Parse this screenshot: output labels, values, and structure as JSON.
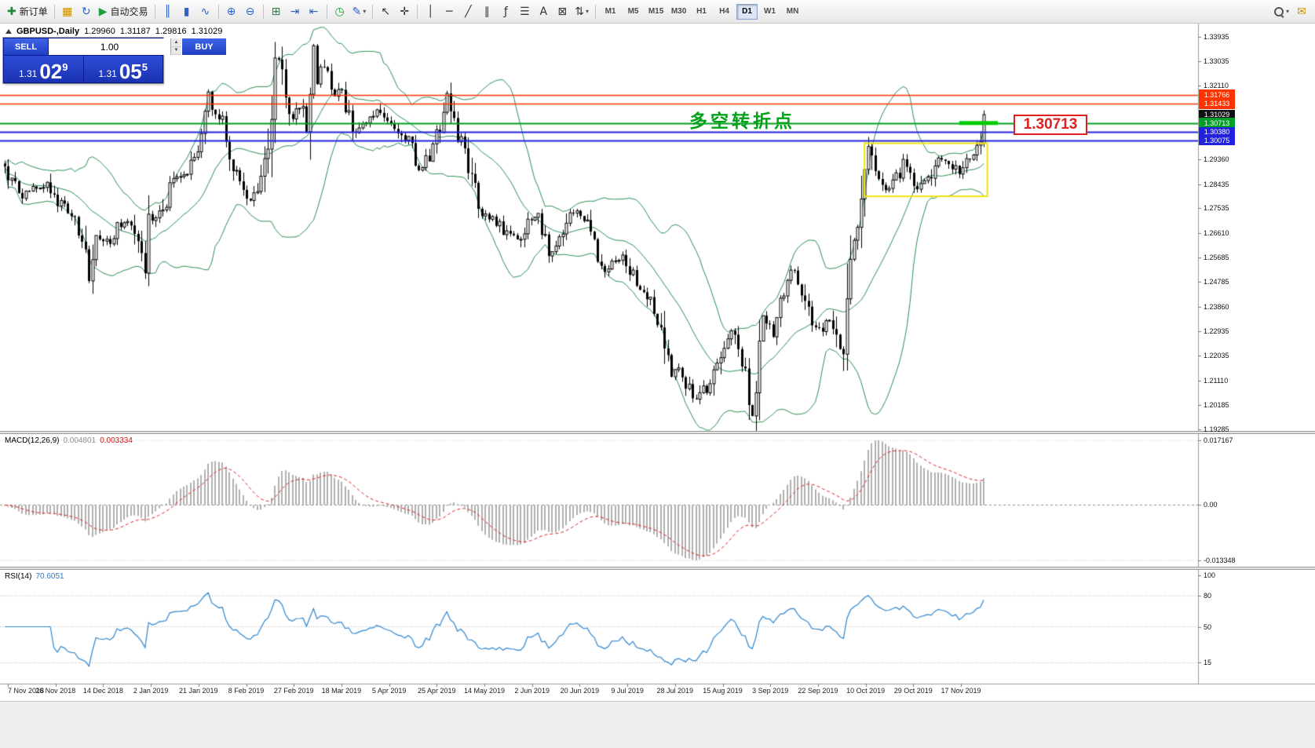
{
  "toolbar": {
    "items": [
      {
        "type": "labeled",
        "name": "new-order-button",
        "icon": "new-order-icon",
        "glyph": "✚",
        "color": "#1f8a3b",
        "label": "新订单"
      },
      {
        "type": "sep"
      },
      {
        "type": "icon",
        "name": "profiles-icon",
        "glyph": "▦",
        "color": "#c98f00"
      },
      {
        "type": "icon",
        "name": "refresh-icon",
        "glyph": "↻",
        "color": "#2f62c4"
      },
      {
        "type": "labeled",
        "name": "autotrade-button",
        "icon": "autotrade-play-icon",
        "glyph": "▶",
        "color": "#1fa03c",
        "label": "自动交易"
      },
      {
        "type": "sep"
      },
      {
        "type": "icon",
        "name": "bar-chart-icon",
        "glyph": "║",
        "color": "#2f62c4"
      },
      {
        "type": "icon",
        "name": "candlestick-chart-icon",
        "glyph": "▮",
        "color": "#2f62c4"
      },
      {
        "type": "icon",
        "name": "line-chart-icon",
        "glyph": "∿",
        "color": "#2f62c4"
      },
      {
        "type": "sep"
      },
      {
        "type": "icon",
        "name": "zoom-in-icon",
        "glyph": "⊕",
        "color": "#2f62c4"
      },
      {
        "type": "icon",
        "name": "zoom-out-icon",
        "glyph": "⊖",
        "color": "#2f62c4"
      },
      {
        "type": "sep"
      },
      {
        "type": "icon",
        "name": "tile-windows-icon",
        "glyph": "⊞",
        "color": "#1f8a3b"
      },
      {
        "type": "icon",
        "name": "auto-scroll-icon",
        "glyph": "⇥",
        "color": "#2f62c4"
      },
      {
        "type": "icon",
        "name": "chart-shift-icon",
        "glyph": "⇤",
        "color": "#2f62c4"
      },
      {
        "type": "sep"
      },
      {
        "type": "icon",
        "name": "clock-icon",
        "glyph": "◷",
        "color": "#1fa03c"
      },
      {
        "type": "icon",
        "name": "templates-icon",
        "glyph": "✎",
        "color": "#2f62c4",
        "caret": true
      },
      {
        "type": "sep"
      },
      {
        "type": "icon",
        "name": "cursor-icon",
        "glyph": "↖",
        "color": "#333333"
      },
      {
        "type": "icon",
        "name": "crosshair-icon",
        "glyph": "✛",
        "color": "#333333"
      },
      {
        "type": "sep"
      },
      {
        "type": "icon",
        "name": "vertical-line-icon",
        "glyph": "│",
        "color": "#333333"
      },
      {
        "type": "icon",
        "name": "horizontal-line-icon",
        "glyph": "─",
        "color": "#333333"
      },
      {
        "type": "icon",
        "name": "trendline-icon",
        "glyph": "╱",
        "color": "#333333"
      },
      {
        "type": "icon",
        "name": "equidistant-channel-icon",
        "glyph": "∥",
        "color": "#333333"
      },
      {
        "type": "icon",
        "name": "fibonacci-icon",
        "glyph": "ƒ",
        "color": "#333333"
      },
      {
        "type": "icon",
        "name": "shapes-icon",
        "glyph": "☰",
        "color": "#333333"
      },
      {
        "type": "icon",
        "name": "text-icon",
        "glyph": "A",
        "color": "#333333"
      },
      {
        "type": "icon",
        "name": "text-label-icon",
        "glyph": "⊠",
        "color": "#333333"
      },
      {
        "type": "icon",
        "name": "arrows-icon",
        "glyph": "⇅",
        "color": "#333333",
        "caret": true
      }
    ],
    "timeframes": {
      "options": [
        "M1",
        "M5",
        "M15",
        "M30",
        "H1",
        "H4",
        "D1",
        "W1",
        "MN"
      ],
      "active": "D1"
    }
  },
  "chart_header": {
    "symbol": "GBPUSD-,Daily",
    "open": "1.29960",
    "high": "1.31187",
    "low": "1.29816",
    "close": "1.31029"
  },
  "trade_panel": {
    "sell_label": "SELL",
    "buy_label": "BUY",
    "volume": "1.00",
    "sell_price": {
      "prefix": "1.31",
      "big": "02",
      "sup": "9"
    },
    "buy_price": {
      "prefix": "1.31",
      "big": "05",
      "sup": "5"
    }
  },
  "annotations": {
    "turning_point": "多空转折点",
    "price_tag": "1.30713"
  },
  "price_scale": {
    "ticks": [
      "1.33935",
      "1.33035",
      "1.32110",
      "1.29360",
      "1.28435",
      "1.27535",
      "1.26610",
      "1.25685",
      "1.24785",
      "1.23860",
      "1.22935",
      "1.22035",
      "1.21110",
      "1.20185",
      "1.19285"
    ],
    "badges": [
      {
        "text": "1.31766",
        "bg": "#ff3300"
      },
      {
        "text": "1.31433",
        "bg": "#ff3300"
      },
      {
        "text": "1.31029",
        "bg": "#111111"
      },
      {
        "text": "1.30713",
        "bg": "#00a028"
      },
      {
        "text": "1.30380",
        "bg": "#2222dd"
      },
      {
        "text": "1.30075",
        "bg": "#2222dd"
      }
    ]
  },
  "macd_panel": {
    "label": "MACD(12,26,9)",
    "value_main": "0.004801",
    "value_signal": "0.003334",
    "ticks": {
      "top": "0.017167",
      "zero": "0.00",
      "bottom": "-0.013348"
    }
  },
  "rsi_panel": {
    "label": "RSI(14)",
    "value": "70.6051",
    "ticks": [
      "100",
      "80",
      "50",
      "15"
    ],
    "levels": [
      80,
      50,
      15
    ]
  },
  "time_axis": {
    "dates": [
      "7 Nov 2018",
      "26 Nov 2018",
      "14 Dec 2018",
      "2 Jan 2019",
      "21 Jan 2019",
      "8 Feb 2019",
      "27 Feb 2019",
      "18 Mar 2019",
      "5 Apr 2019",
      "25 Apr 2019",
      "14 May 2019",
      "2 Jun 2019",
      "20 Jun 2019",
      "9 Jul 2019",
      "28 Jul 2019",
      "15 Aug 2019",
      "3 Sep 2019",
      "22 Sep 2019",
      "10 Oct 2019",
      "29 Oct 2019",
      "17 Nov 2019"
    ]
  },
  "chart_data": {
    "type": "candlestick",
    "symbol": "GBPUSD",
    "timeframe": "Daily",
    "grid": false,
    "price_axis": {
      "min": 1.1922,
      "max": 1.3443
    },
    "candles": {
      "count": 280,
      "last": {
        "o": 1.2996,
        "h": 1.31187,
        "l": 1.29816,
        "c": 1.31029
      },
      "price_path": [
        [
          0,
          1.292
        ],
        [
          4,
          1.2795
        ],
        [
          8,
          1.2825
        ],
        [
          12,
          1.284
        ],
        [
          16,
          1.276
        ],
        [
          20,
          1.272
        ],
        [
          23,
          1.256
        ],
        [
          24,
          1.249
        ],
        [
          26,
          1.262
        ],
        [
          30,
          1.264
        ],
        [
          33,
          1.27
        ],
        [
          36,
          1.269
        ],
        [
          38,
          1.26
        ],
        [
          40,
          1.252
        ],
        [
          41,
          1.27
        ],
        [
          44,
          1.273
        ],
        [
          48,
          1.285
        ],
        [
          52,
          1.288
        ],
        [
          55,
          1.295
        ],
        [
          57,
          1.306
        ],
        [
          58,
          1.317
        ],
        [
          60,
          1.312
        ],
        [
          62,
          1.306
        ],
        [
          64,
          1.294
        ],
        [
          67,
          1.286
        ],
        [
          70,
          1.279
        ],
        [
          72,
          1.283
        ],
        [
          74,
          1.29
        ],
        [
          76,
          1.31
        ],
        [
          77,
          1.325
        ],
        [
          78,
          1.33
        ],
        [
          80,
          1.317
        ],
        [
          82,
          1.31
        ],
        [
          84,
          1.314
        ],
        [
          86,
          1.308
        ],
        [
          87,
          1.32
        ],
        [
          88,
          1.334
        ],
        [
          89,
          1.324
        ],
        [
          90,
          1.329
        ],
        [
          92,
          1.325
        ],
        [
          94,
          1.318
        ],
        [
          96,
          1.32
        ],
        [
          98,
          1.309
        ],
        [
          100,
          1.304
        ],
        [
          103,
          1.307
        ],
        [
          106,
          1.312
        ],
        [
          109,
          1.308
        ],
        [
          112,
          1.305
        ],
        [
          115,
          1.3
        ],
        [
          118,
          1.291
        ],
        [
          120,
          1.293
        ],
        [
          123,
          1.301
        ],
        [
          126,
          1.317
        ],
        [
          127,
          1.31
        ],
        [
          129,
          1.302
        ],
        [
          131,
          1.3
        ],
        [
          133,
          1.287
        ],
        [
          135,
          1.272
        ],
        [
          137,
          1.273
        ],
        [
          140,
          1.27
        ],
        [
          143,
          1.266
        ],
        [
          146,
          1.263
        ],
        [
          149,
          1.27
        ],
        [
          152,
          1.273
        ],
        [
          155,
          1.259
        ],
        [
          158,
          1.264
        ],
        [
          161,
          1.274
        ],
        [
          164,
          1.272
        ],
        [
          167,
          1.268
        ],
        [
          170,
          1.252
        ],
        [
          173,
          1.255
        ],
        [
          176,
          1.257
        ],
        [
          179,
          1.25
        ],
        [
          182,
          1.244
        ],
        [
          185,
          1.238
        ],
        [
          187,
          1.23
        ],
        [
          188,
          1.2215
        ],
        [
          190,
          1.2125
        ],
        [
          192,
          1.2145
        ],
        [
          195,
          1.208
        ],
        [
          197,
          1.203
        ],
        [
          199,
          1.207
        ],
        [
          201,
          1.209
        ],
        [
          203,
          1.217
        ],
        [
          205,
          1.225
        ],
        [
          207,
          1.229
        ],
        [
          209,
          1.221
        ],
        [
          211,
          1.216
        ],
        [
          213,
          1.199
        ],
        [
          214,
          1.209
        ],
        [
          216,
          1.233
        ],
        [
          219,
          1.229
        ],
        [
          222,
          1.246
        ],
        [
          224,
          1.252
        ],
        [
          226,
          1.248
        ],
        [
          228,
          1.243
        ],
        [
          230,
          1.232
        ],
        [
          233,
          1.23
        ],
        [
          235,
          1.233
        ],
        [
          238,
          1.221
        ],
        [
          239,
          1.229
        ],
        [
          240,
          1.244
        ],
        [
          241,
          1.264
        ],
        [
          243,
          1.267
        ],
        [
          245,
          1.287
        ],
        [
          246,
          1.298
        ],
        [
          248,
          1.287
        ],
        [
          250,
          1.285
        ],
        [
          252,
          1.283
        ],
        [
          254,
          1.286
        ],
        [
          256,
          1.294
        ],
        [
          258,
          1.288
        ],
        [
          260,
          1.282
        ],
        [
          262,
          1.285
        ],
        [
          264,
          1.288
        ],
        [
          266,
          1.293
        ],
        [
          268,
          1.292
        ],
        [
          270,
          1.291
        ],
        [
          272,
          1.289
        ],
        [
          274,
          1.293
        ],
        [
          276,
          1.295
        ],
        [
          277,
          1.299
        ],
        [
          278,
          1.2996
        ],
        [
          279,
          1.31029
        ]
      ]
    },
    "overlays": {
      "bollinger": {
        "period": 20,
        "deviation": 2,
        "color": "#2a9154"
      },
      "hlines": [
        {
          "price": 1.31766,
          "color": "#ff3300",
          "width": 1.5
        },
        {
          "price": 1.31433,
          "color": "#ff3300",
          "width": 1.5
        },
        {
          "price": 1.30713,
          "color": "#00a01e",
          "width": 2
        },
        {
          "price": 1.3038,
          "color": "#2222dd",
          "width": 2
        },
        {
          "price": 1.30075,
          "color": "#2222dd",
          "width": 2
        }
      ],
      "yellow_box": {
        "i_start": 245,
        "i_end": 280,
        "price_top": 1.2996,
        "price_bottom": 1.2798,
        "color": "#f2e50b"
      },
      "green_segment": {
        "price": 1.30713,
        "i_start": 272,
        "i_end": 283,
        "color": "#00cc00",
        "width": 5
      }
    },
    "indicators": {
      "macd": {
        "fast": 12,
        "slow": 26,
        "signal": 9,
        "histogram_color": "#b0b0b0",
        "signal_color": "#e22222"
      },
      "rsi": {
        "period": 14,
        "color": "#2e86d0"
      }
    }
  }
}
